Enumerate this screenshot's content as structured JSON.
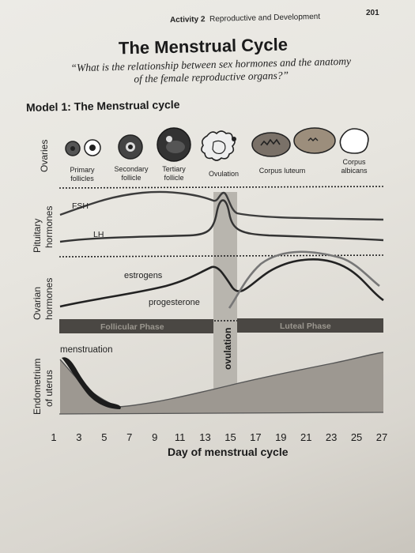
{
  "header": {
    "activity": "Activity 2",
    "section": "Reproductive and Development",
    "page_number": "201"
  },
  "title": "The Menstrual Cycle",
  "subtitle_line1": "“What is the relationship between sex hormones and the anatomy",
  "subtitle_line2": "of the female reproductive organs?”",
  "model_title": "Model 1: The Menstrual cycle",
  "row_labels": {
    "ovaries": "Ovaries",
    "pituitary_1": "Pituitary",
    "pituitary_2": "hormones",
    "ovarian_1": "Ovarian",
    "ovarian_2": "hormones",
    "endometrium_1": "Endometrium",
    "endometrium_2": "of uterus"
  },
  "follicle_stages": {
    "primary_1": "Primary",
    "primary_2": "follicles",
    "secondary_1": "Secondary",
    "secondary_2": "follicle",
    "tertiary_1": "Tertiary",
    "tertiary_2": "follicle",
    "ovulation": "Ovulation",
    "corpus_luteum": "Corpus luteum",
    "corpus_albicans_1": "Corpus",
    "corpus_albicans_2": "albicans"
  },
  "curve_labels": {
    "fsh": "FSH",
    "lh": "LH",
    "estrogen": "estrogens",
    "progesterone": "progesterone"
  },
  "phases": {
    "follicular": "Follicular Phase",
    "luteal": "Luteal Phase",
    "ovulation": "ovulation"
  },
  "menstruation_label": "menstruation",
  "x_axis": {
    "title": "Day of menstrual cycle",
    "ticks": [
      "1",
      "3",
      "5",
      "7",
      "9",
      "11",
      "13",
      "15",
      "17",
      "19",
      "21",
      "23",
      "25",
      "27"
    ]
  }
}
